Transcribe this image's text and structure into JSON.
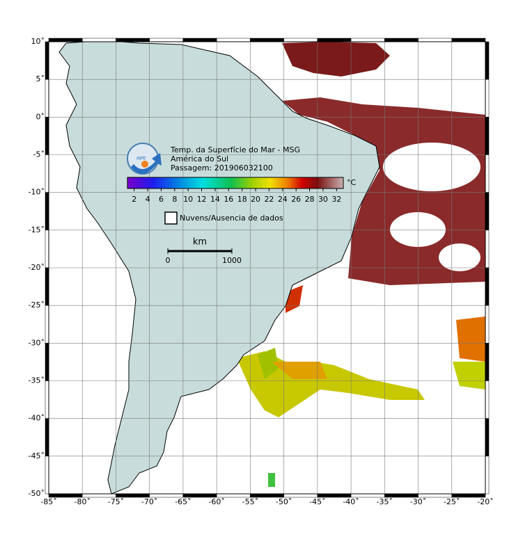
{
  "map": {
    "title": "Temp. da Superfície do Mar - MSG",
    "region": "América do Sul",
    "pass": "Passagem: 201906032100",
    "logo_text": "INPE",
    "lonlim": [
      -85,
      -20
    ],
    "latlim": [
      -50,
      10
    ],
    "lonticks": [
      {
        "value": -85,
        "label": "-85˚"
      },
      {
        "value": -80,
        "label": "-80˚"
      },
      {
        "value": -75,
        "label": "-75˚"
      },
      {
        "value": -70,
        "label": "-70˚"
      },
      {
        "value": -65,
        "label": "-65˚"
      },
      {
        "value": -60,
        "label": "-60˚"
      },
      {
        "value": -55,
        "label": "-55˚"
      },
      {
        "value": -50,
        "label": "-50˚"
      },
      {
        "value": -45,
        "label": "-45˚"
      },
      {
        "value": -40,
        "label": "-40˚"
      },
      {
        "value": -35,
        "label": "-35˚"
      },
      {
        "value": -30,
        "label": "-30˚"
      },
      {
        "value": -25,
        "label": "-25˚"
      },
      {
        "value": -20,
        "label": "-20˚"
      }
    ],
    "latticks": [
      {
        "value": 10,
        "label": "10˚"
      },
      {
        "value": 5,
        "label": "5˚"
      },
      {
        "value": 0,
        "label": "0˚"
      },
      {
        "value": -5,
        "label": "-5˚"
      },
      {
        "value": -10,
        "label": "-10˚"
      },
      {
        "value": -15,
        "label": "-15˚"
      },
      {
        "value": -20,
        "label": "-20˚"
      },
      {
        "value": -25,
        "label": "-25˚"
      },
      {
        "value": -30,
        "label": "-30˚"
      },
      {
        "value": -35,
        "label": "-35˚"
      },
      {
        "value": -40,
        "label": "-40˚"
      },
      {
        "value": -45,
        "label": "-45˚"
      },
      {
        "value": -50,
        "label": "-50˚"
      }
    ],
    "colorbar": {
      "unit": "°C",
      "range": [
        1,
        33
      ],
      "ticks": [
        2,
        4,
        6,
        8,
        10,
        12,
        14,
        16,
        18,
        20,
        22,
        24,
        26,
        28,
        30,
        32
      ]
    },
    "legend": "Nuvens/Ausencia de dados",
    "scalebar": {
      "unit": "km",
      "ticks": [
        0,
        1000
      ]
    }
  }
}
